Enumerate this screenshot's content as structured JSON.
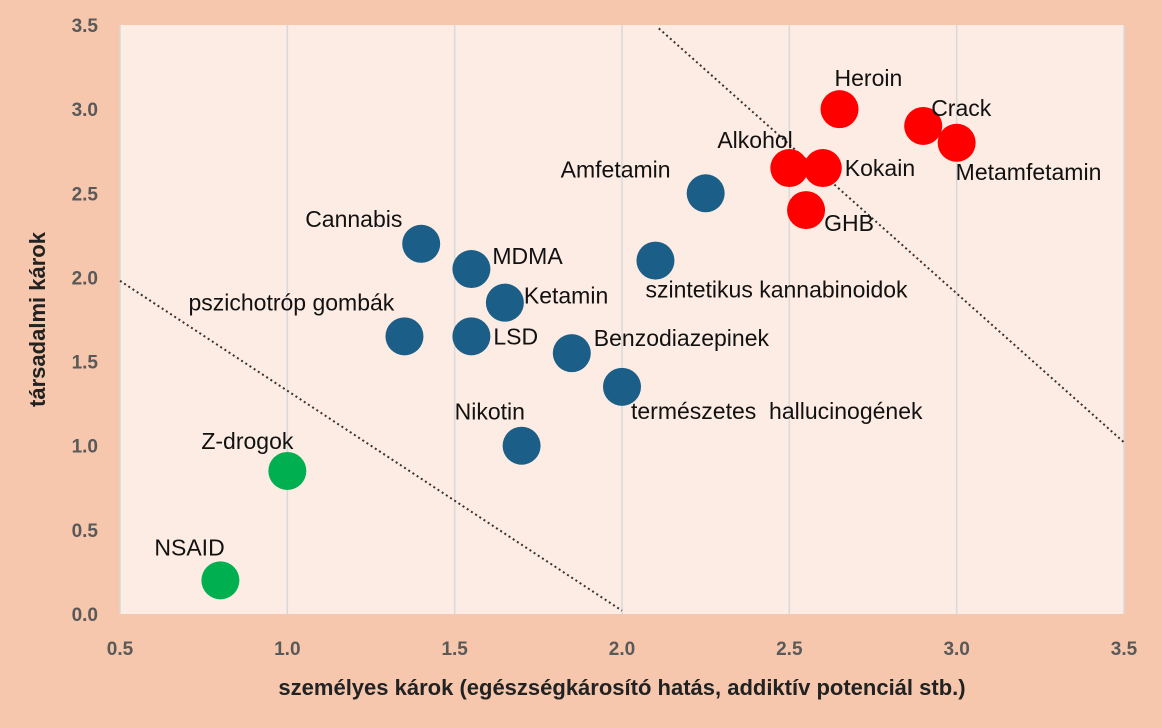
{
  "chart_data": {
    "type": "scatter",
    "xlabel": "személyes károk (egészségkárosító hatás, addiktív potenciál stb.)",
    "ylabel": "társadalmi károk",
    "xlim": [
      0.5,
      3.5
    ],
    "ylim": [
      0.0,
      3.5
    ],
    "x_ticks": [
      "0.5",
      "1.0",
      "1.5",
      "2.0",
      "2.5",
      "3.0",
      "3.5"
    ],
    "y_ticks": [
      "0.0",
      "0.5",
      "1.0",
      "1.5",
      "2.0",
      "2.5",
      "3.0",
      "3.5"
    ],
    "grid": "vertical",
    "colors": {
      "plot_background": "#fdece3",
      "outer_background": "#f6c7ac",
      "low_harm": "#00b050",
      "medium_harm": "#1b5e87",
      "high_harm": "#ff0000",
      "gridline": "#d9d9d9",
      "trend_line": "#333333"
    },
    "reference_lines": [
      {
        "x": [
          0.5,
          2.0
        ],
        "y": [
          1.98,
          0.02
        ]
      },
      {
        "x": [
          2.11,
          3.5
        ],
        "y": [
          3.48,
          1.02
        ]
      }
    ],
    "points": [
      {
        "label": "NSAID",
        "x": 0.8,
        "y": 0.2,
        "group": "low_harm"
      },
      {
        "label": "Z-drogok",
        "x": 1.0,
        "y": 0.85,
        "group": "low_harm"
      },
      {
        "label": "Nikotin",
        "x": 1.7,
        "y": 1.0,
        "group": "medium_harm"
      },
      {
        "label": "pszichotróp gombák",
        "x": 1.35,
        "y": 1.65,
        "group": "medium_harm"
      },
      {
        "label": "LSD",
        "x": 1.55,
        "y": 1.65,
        "group": "medium_harm"
      },
      {
        "label": "Cannabis",
        "x": 1.4,
        "y": 2.2,
        "group": "medium_harm"
      },
      {
        "label": "MDMA",
        "x": 1.55,
        "y": 2.05,
        "group": "medium_harm"
      },
      {
        "label": "Ketamin",
        "x": 1.65,
        "y": 1.85,
        "group": "medium_harm"
      },
      {
        "label": "Benzodiazepinek",
        "x": 1.85,
        "y": 1.55,
        "group": "medium_harm"
      },
      {
        "label": "természetes  hallucinogének",
        "x": 2.0,
        "y": 1.35,
        "group": "medium_harm"
      },
      {
        "label": "szintetikus kannabinoidok",
        "x": 2.1,
        "y": 2.1,
        "group": "medium_harm"
      },
      {
        "label": "Amfetamin",
        "x": 2.25,
        "y": 2.5,
        "group": "medium_harm"
      },
      {
        "label": "Alkohol",
        "x": 2.5,
        "y": 2.65,
        "group": "high_harm"
      },
      {
        "label": "Kokain",
        "x": 2.6,
        "y": 2.65,
        "group": "high_harm"
      },
      {
        "label": "GHB",
        "x": 2.55,
        "y": 2.4,
        "group": "high_harm"
      },
      {
        "label": "Heroin",
        "x": 2.65,
        "y": 3.0,
        "group": "high_harm"
      },
      {
        "label": "Crack",
        "x": 2.9,
        "y": 2.9,
        "group": "high_harm"
      },
      {
        "label": "Metamfetamin",
        "x": 3.0,
        "y": 2.8,
        "group": "high_harm"
      }
    ]
  }
}
